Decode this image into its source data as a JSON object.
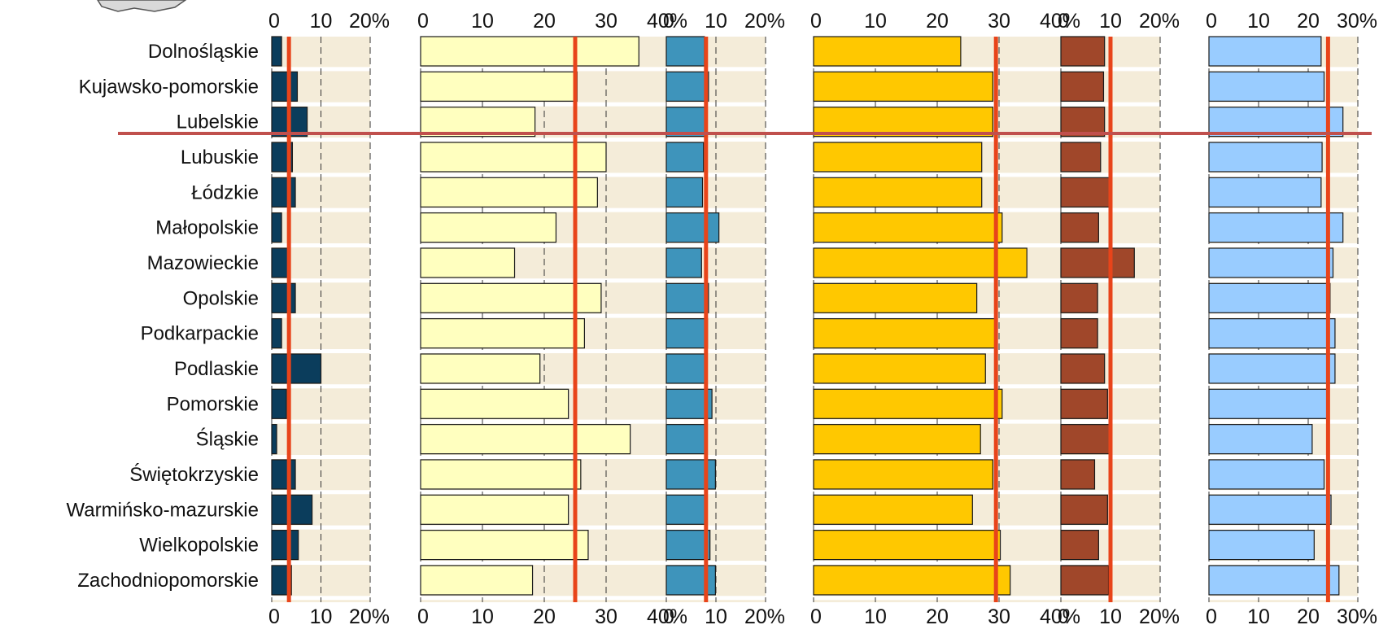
{
  "chart_data": [
    {
      "type": "bar",
      "orientation": "horizontal",
      "xlim": [
        0,
        20
      ],
      "ticks": [
        "0",
        "10",
        "20%"
      ],
      "reference_value": 3.5,
      "color": "#0b3d5c",
      "categories": [
        "Dolnośląskie",
        "Kujawsko-pomorskie",
        "Lubelskie",
        "Lubuskie",
        "Łódzkie",
        "Małopolskie",
        "Mazowieckie",
        "Opolskie",
        "Podkarpackie",
        "Podlaskie",
        "Pomorskie",
        "Śląskie",
        "Świętokrzyskie",
        "Warmińsko-mazurskie",
        "Wielkopolskie",
        "Zachodniopomorskie"
      ],
      "values": [
        2.0,
        5.2,
        7.2,
        4.2,
        4.8,
        2.0,
        3.5,
        4.8,
        2.0,
        10.0,
        3.0,
        1.0,
        4.8,
        8.2,
        5.4,
        4.0
      ]
    },
    {
      "type": "bar",
      "orientation": "horizontal",
      "xlim": [
        0,
        40
      ],
      "ticks": [
        "0",
        "10",
        "20",
        "30",
        "40%"
      ],
      "reference_value": 25.0,
      "color": "#ffffbf",
      "categories": [
        "Dolnośląskie",
        "Kujawsko-pomorskie",
        "Lubelskie",
        "Lubuskie",
        "Łódzkie",
        "Małopolskie",
        "Mazowieckie",
        "Opolskie",
        "Podkarpackie",
        "Podlaskie",
        "Pomorskie",
        "Śląskie",
        "Świętokrzyskie",
        "Warmińsko-mazurskie",
        "Wielkopolskie",
        "Zachodniopomorskie"
      ],
      "values": [
        35.3,
        25.3,
        18.5,
        30.0,
        28.6,
        21.9,
        15.2,
        29.2,
        26.5,
        19.3,
        23.9,
        33.9,
        25.9,
        23.9,
        27.1,
        18.1
      ]
    },
    {
      "type": "bar",
      "orientation": "horizontal",
      "xlim": [
        0,
        20
      ],
      "ticks": [
        "0",
        "10",
        "20%"
      ],
      "reference_value": 8.0,
      "color": "#3e94bb",
      "categories": [
        "Dolnośląskie",
        "Kujawsko-pomorskie",
        "Lubelskie",
        "Lubuskie",
        "Łódzkie",
        "Małopolskie",
        "Mazowieckie",
        "Opolskie",
        "Podkarpackie",
        "Podlaskie",
        "Pomorskie",
        "Śląskie",
        "Świętokrzyskie",
        "Warmińsko-mazurskie",
        "Wielkopolskie",
        "Zachodniopomorskie"
      ],
      "values": [
        7.7,
        8.5,
        8.0,
        7.5,
        7.3,
        10.6,
        7.1,
        8.5,
        8.3,
        8.0,
        9.2,
        8.1,
        9.9,
        8.1,
        8.8,
        9.9
      ]
    },
    {
      "type": "bar",
      "orientation": "horizontal",
      "xlim": [
        0,
        40
      ],
      "ticks": [
        "0",
        "10",
        "20",
        "30",
        "40%"
      ],
      "reference_value": 29.5,
      "color": "#ffc800",
      "categories": [
        "Dolnośląskie",
        "Kujawsko-pomorskie",
        "Lubelskie",
        "Lubuskie",
        "Łódzkie",
        "Małopolskie",
        "Mazowieckie",
        "Opolskie",
        "Podkarpackie",
        "Podlaskie",
        "Pomorskie",
        "Śląskie",
        "Świętokrzyskie",
        "Warmińsko-mazurskie",
        "Wielkopolskie",
        "Zachodniopomorskie"
      ],
      "values": [
        23.8,
        29.0,
        29.0,
        27.2,
        27.2,
        30.5,
        34.5,
        26.4,
        29.6,
        27.8,
        30.5,
        27.0,
        29.0,
        25.7,
        30.2,
        31.8
      ]
    },
    {
      "type": "bar",
      "orientation": "horizontal",
      "xlim": [
        0,
        20
      ],
      "ticks": [
        "0",
        "10",
        "20%"
      ],
      "reference_value": 10.0,
      "color": "#a0472a",
      "categories": [
        "Dolnośląskie",
        "Kujawsko-pomorskie",
        "Lubelskie",
        "Lubuskie",
        "Łódzkie",
        "Małopolskie",
        "Mazowieckie",
        "Opolskie",
        "Podkarpackie",
        "Podlaskie",
        "Pomorskie",
        "Śląskie",
        "Świętokrzyskie",
        "Warmińsko-mazurskie",
        "Wielkopolskie",
        "Zachodniopomorskie"
      ],
      "values": [
        8.8,
        8.6,
        8.8,
        8.0,
        10.0,
        7.6,
        14.8,
        7.4,
        7.4,
        8.8,
        9.4,
        10.0,
        6.8,
        9.4,
        7.6,
        9.6
      ]
    },
    {
      "type": "bar",
      "orientation": "horizontal",
      "xlim": [
        0,
        30
      ],
      "ticks": [
        "0",
        "10",
        "20",
        "30%"
      ],
      "reference_value": 24.0,
      "color": "#99ccff",
      "categories": [
        "Dolnośląskie",
        "Kujawsko-pomorskie",
        "Lubelskie",
        "Lubuskie",
        "Łódzkie",
        "Małopolskie",
        "Mazowieckie",
        "Opolskie",
        "Podkarpackie",
        "Podlaskie",
        "Pomorskie",
        "Śląskie",
        "Świętokrzyskie",
        "Warmińsko-mazurskie",
        "Wielkopolskie",
        "Zachodniopomorskie"
      ],
      "values": [
        22.6,
        23.2,
        27.0,
        22.8,
        22.6,
        27.0,
        25.0,
        24.4,
        25.4,
        25.4,
        23.8,
        20.8,
        23.2,
        24.6,
        21.2,
        26.2
      ]
    }
  ],
  "colors": {
    "panel_background": "#f4ecd9",
    "reference_line": "#e8441a",
    "separator_line": "#c0504d",
    "bar_outline": "#1a1a1a"
  }
}
